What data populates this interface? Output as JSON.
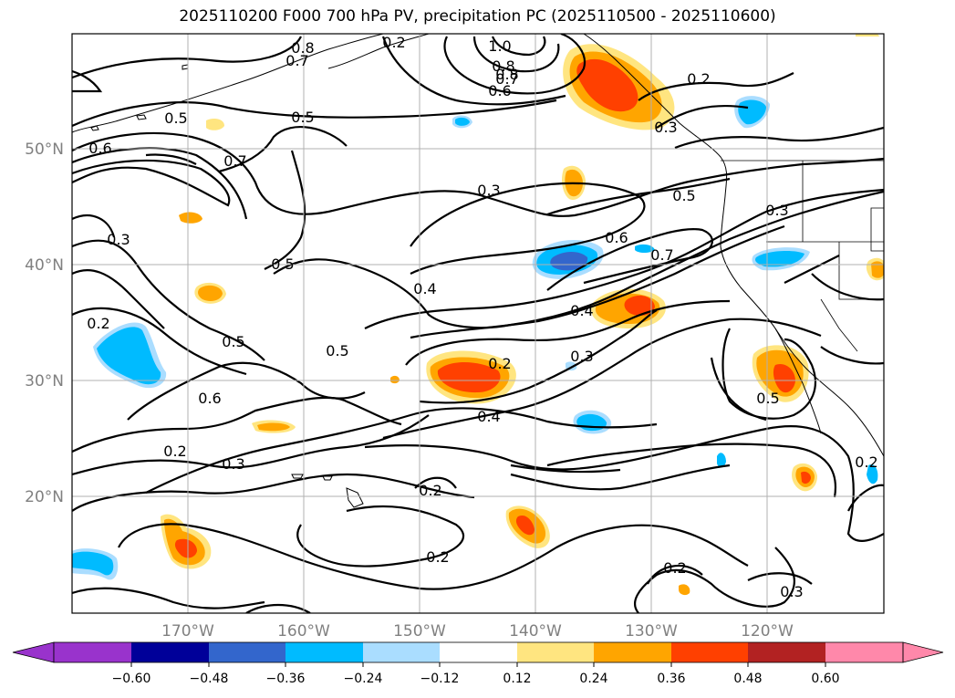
{
  "title": "2025110200 F000 700 hPa PV, precipitation PC (2025110500 - 2025110600)",
  "map": {
    "projection": "cylindrical",
    "lon_range": [
      -180,
      -110
    ],
    "lat_range": [
      10,
      60
    ],
    "lat_ticks": [
      "50°N",
      "40°N",
      "30°N",
      "20°N"
    ],
    "lon_ticks": [
      "170°W",
      "160°W",
      "150°W",
      "140°W",
      "130°W",
      "120°W"
    ],
    "gridlines": true,
    "coastlines": true,
    "contour_field": "700 hPa PV",
    "contour_labels": [
      "0.8",
      "0.7",
      "0.8",
      "1.0",
      "0.8",
      "0.7",
      "0.6",
      "0.2",
      "0.5",
      "0.5",
      "0.3",
      "0.6",
      "0.7",
      "0.3",
      "0.3",
      "0.5",
      "0.3",
      "0.6",
      "0.7",
      "0.5",
      "0.4",
      "0.4",
      "0.2",
      "0.5",
      "0.2",
      "0.3",
      "0.5",
      "0.6",
      "0.5",
      "0.4",
      "0.3",
      "0.2",
      "0.2",
      "0.2",
      "0.2",
      "0.3",
      "0.2",
      "0.2"
    ]
  },
  "colorbar": {
    "ticks": [
      "−0.60",
      "−0.48",
      "−0.36",
      "−0.24",
      "−0.12",
      "0.12",
      "0.24",
      "0.36",
      "0.48",
      "0.60"
    ],
    "colors": [
      "#9933cc",
      "#000099",
      "#3366cc",
      "#00bbff",
      "#aaddff",
      "#ffffff",
      "#ffe580",
      "#ffa500",
      "#ff4000",
      "#b22222",
      "#ff88aa"
    ],
    "extend": "both"
  }
}
